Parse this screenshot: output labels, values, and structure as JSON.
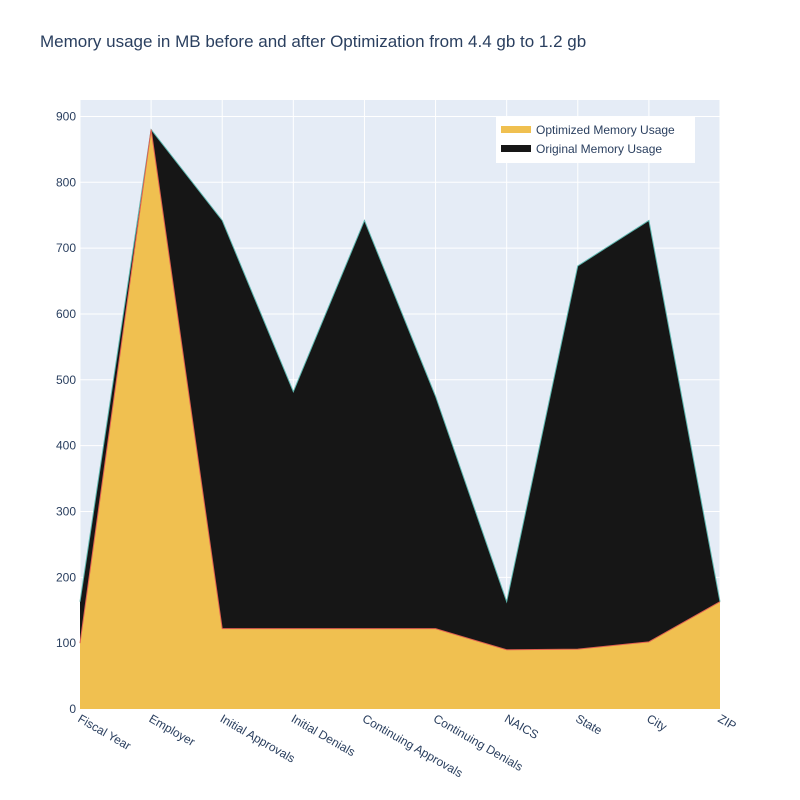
{
  "chart_data": {
    "type": "area",
    "title": "Memory usage in MB before and after Optimization from 4.4 gb to 1.2 gb",
    "xlabel": "",
    "ylabel": "",
    "ylim": [
      0,
      925
    ],
    "yticks": [
      0,
      100,
      200,
      300,
      400,
      500,
      600,
      700,
      800,
      900
    ],
    "grid": true,
    "legend_position": "top-right",
    "categories": [
      "Fiscal Year",
      "Employer",
      "Initial Approvals",
      "Initial Denials",
      "Continuing Approvals",
      "Continuing Denials",
      "NAICS",
      "State",
      "City",
      "ZIP"
    ],
    "series": [
      {
        "name": "Optimized Memory Usage",
        "color": "#f0c050",
        "values": [
          100,
          880,
          122,
          122,
          122,
          122,
          90,
          91,
          102,
          163
        ]
      },
      {
        "name": "Original Memory Usage",
        "color": "#161616",
        "values": [
          163,
          880,
          742,
          482,
          742,
          475,
          163,
          673,
          742,
          163
        ]
      }
    ]
  }
}
